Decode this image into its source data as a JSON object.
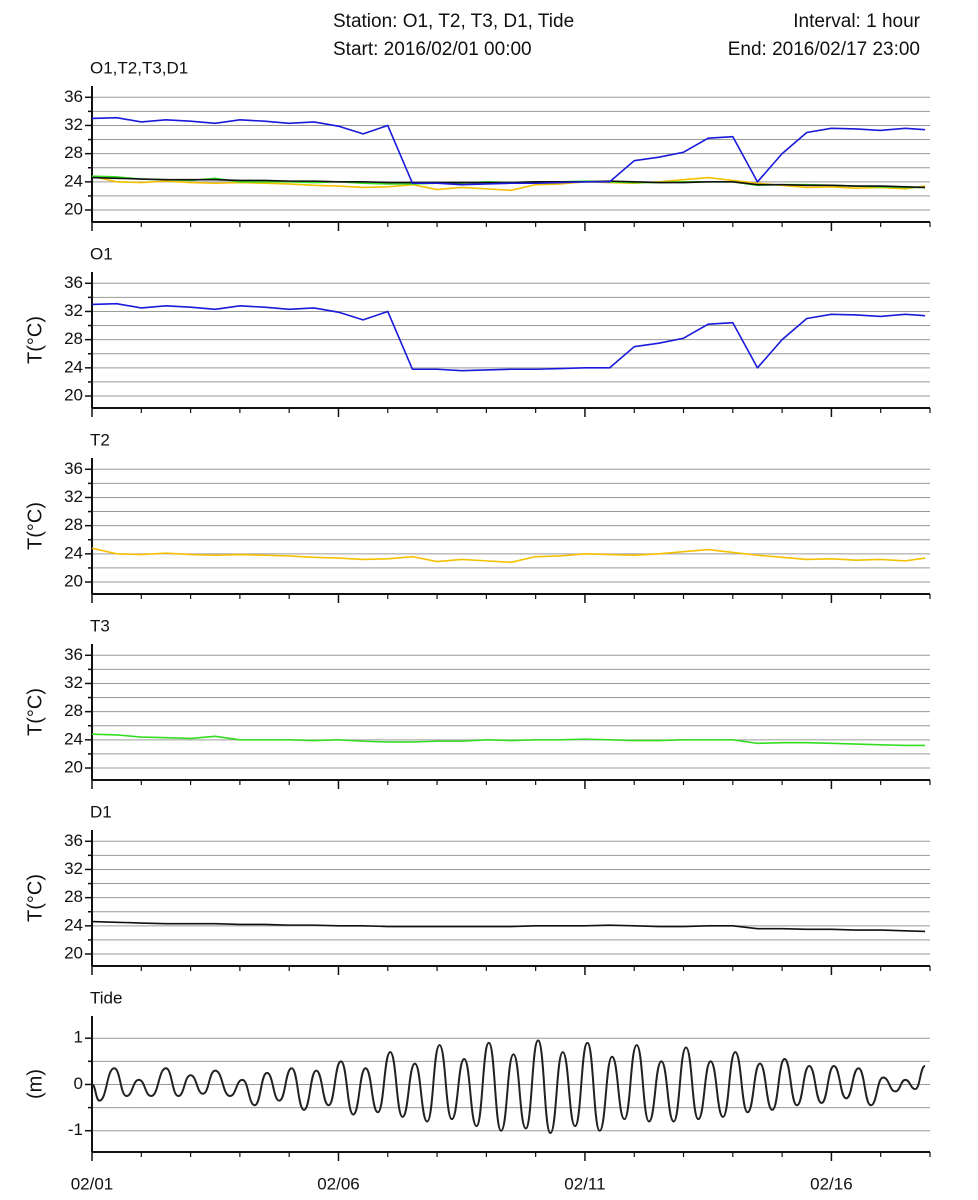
{
  "header": {
    "station": "Station: O1, T2, T3, D1, Tide",
    "interval": "Interval: 1 hour",
    "start": "Start: 2016/02/01 00:00",
    "end": "End: 2016/02/17 23:00"
  },
  "chart_data": [
    {
      "type": "line",
      "title": "O1,T2,T3,D1",
      "x": [
        1,
        1.5,
        2,
        2.5,
        3,
        3.5,
        4,
        4.5,
        5,
        5.5,
        6,
        6.5,
        7,
        7.5,
        8,
        8.5,
        9,
        9.5,
        10,
        10.5,
        11,
        11.5,
        12,
        12.5,
        13,
        13.5,
        14,
        14.5,
        15,
        15.5,
        16,
        16.5,
        17,
        17.5,
        17.9
      ],
      "series": [
        {
          "name": "T2",
          "color": "#f5c000",
          "values": [
            24.8,
            24.0,
            23.9,
            24.1,
            23.9,
            23.8,
            23.9,
            23.8,
            23.7,
            23.5,
            23.4,
            23.2,
            23.3,
            23.6,
            22.9,
            23.2,
            23.0,
            22.8,
            23.6,
            23.7,
            24.0,
            23.9,
            23.8,
            24.0,
            24.3,
            24.6,
            24.2,
            23.8,
            23.5,
            23.2,
            23.3,
            23.1,
            23.2,
            23.0,
            23.4
          ]
        },
        {
          "name": "T3",
          "color": "#33dd22",
          "values": [
            24.8,
            24.7,
            24.4,
            24.3,
            24.2,
            24.5,
            24.0,
            24.0,
            24.0,
            23.9,
            24.0,
            23.8,
            23.7,
            23.7,
            23.8,
            23.8,
            24.0,
            23.9,
            24.0,
            24.0,
            24.1,
            24.0,
            23.9,
            23.9,
            24.0,
            24.0,
            24.0,
            23.5,
            23.6,
            23.6,
            23.5,
            23.4,
            23.3,
            23.2,
            23.2
          ]
        },
        {
          "name": "D1",
          "color": "#111111",
          "values": [
            24.6,
            24.5,
            24.4,
            24.3,
            24.3,
            24.3,
            24.2,
            24.2,
            24.1,
            24.1,
            24.0,
            24.0,
            23.9,
            23.9,
            23.9,
            23.9,
            23.9,
            23.9,
            24.0,
            24.0,
            24.0,
            24.1,
            24.0,
            23.9,
            23.9,
            24.0,
            24.0,
            23.6,
            23.6,
            23.5,
            23.5,
            23.4,
            23.4,
            23.3,
            23.2
          ]
        },
        {
          "name": "O1",
          "color": "#1a1adb",
          "values": [
            33.0,
            33.1,
            32.5,
            32.8,
            32.6,
            32.3,
            32.8,
            32.6,
            32.3,
            32.5,
            31.9,
            30.8,
            32.0,
            23.8,
            23.8,
            23.6,
            23.7,
            23.8,
            23.8,
            23.9,
            24.0,
            24.0,
            27.0,
            27.5,
            28.2,
            30.2,
            30.4,
            24.0,
            28.0,
            31.0,
            31.6,
            31.5,
            31.3,
            31.6,
            31.4
          ]
        }
      ],
      "ylim": [
        18.3,
        37.6
      ],
      "yticks": [
        20,
        24,
        28,
        32,
        36
      ],
      "yminorticks": [
        22,
        26,
        30,
        34
      ],
      "grid": true
    },
    {
      "type": "line",
      "title": "O1",
      "ylabel": "T(°C)",
      "x": [
        1,
        1.5,
        2,
        2.5,
        3,
        3.5,
        4,
        4.5,
        5,
        5.5,
        6,
        6.5,
        7,
        7.5,
        8,
        8.5,
        9,
        9.5,
        10,
        10.5,
        11,
        11.5,
        12,
        12.5,
        13,
        13.5,
        14,
        14.5,
        15,
        15.5,
        16,
        16.5,
        17,
        17.5,
        17.9
      ],
      "series": [
        {
          "name": "O1",
          "color": "#1a1adb",
          "values": [
            33.0,
            33.1,
            32.5,
            32.8,
            32.6,
            32.3,
            32.8,
            32.6,
            32.3,
            32.5,
            31.9,
            30.8,
            32.0,
            23.8,
            23.8,
            23.6,
            23.7,
            23.8,
            23.8,
            23.9,
            24.0,
            24.0,
            27.0,
            27.5,
            28.2,
            30.2,
            30.4,
            24.0,
            28.0,
            31.0,
            31.6,
            31.5,
            31.3,
            31.6,
            31.4
          ]
        }
      ],
      "ylim": [
        18.3,
        37.6
      ],
      "yticks": [
        20,
        24,
        28,
        32,
        36
      ],
      "yminorticks": [
        22,
        26,
        30,
        34
      ],
      "grid": true
    },
    {
      "type": "line",
      "title": "T2",
      "ylabel": "T(°C)",
      "x": [
        1,
        1.5,
        2,
        2.5,
        3,
        3.5,
        4,
        4.5,
        5,
        5.5,
        6,
        6.5,
        7,
        7.5,
        8,
        8.5,
        9,
        9.5,
        10,
        10.5,
        11,
        11.5,
        12,
        12.5,
        13,
        13.5,
        14,
        14.5,
        15,
        15.5,
        16,
        16.5,
        17,
        17.5,
        17.9
      ],
      "series": [
        {
          "name": "T2",
          "color": "#f5c000",
          "values": [
            24.8,
            24.0,
            23.9,
            24.1,
            23.9,
            23.8,
            23.9,
            23.8,
            23.7,
            23.5,
            23.4,
            23.2,
            23.3,
            23.6,
            22.9,
            23.2,
            23.0,
            22.8,
            23.6,
            23.7,
            24.0,
            23.9,
            23.8,
            24.0,
            24.3,
            24.6,
            24.2,
            23.8,
            23.5,
            23.2,
            23.3,
            23.1,
            23.2,
            23.0,
            23.4
          ]
        }
      ],
      "ylim": [
        18.3,
        37.6
      ],
      "yticks": [
        20,
        24,
        28,
        32,
        36
      ],
      "yminorticks": [
        22,
        26,
        30,
        34
      ],
      "grid": true
    },
    {
      "type": "line",
      "title": "T3",
      "ylabel": "T(°C)",
      "x": [
        1,
        1.5,
        2,
        2.5,
        3,
        3.5,
        4,
        4.5,
        5,
        5.5,
        6,
        6.5,
        7,
        7.5,
        8,
        8.5,
        9,
        9.5,
        10,
        10.5,
        11,
        11.5,
        12,
        12.5,
        13,
        13.5,
        14,
        14.5,
        15,
        15.5,
        16,
        16.5,
        17,
        17.5,
        17.9
      ],
      "series": [
        {
          "name": "T3",
          "color": "#33dd22",
          "values": [
            24.8,
            24.7,
            24.4,
            24.3,
            24.2,
            24.5,
            24.0,
            24.0,
            24.0,
            23.9,
            24.0,
            23.8,
            23.7,
            23.7,
            23.8,
            23.8,
            24.0,
            23.9,
            24.0,
            24.0,
            24.1,
            24.0,
            23.9,
            23.9,
            24.0,
            24.0,
            24.0,
            23.5,
            23.6,
            23.6,
            23.5,
            23.4,
            23.3,
            23.2,
            23.2
          ]
        }
      ],
      "ylim": [
        18.3,
        37.6
      ],
      "yticks": [
        20,
        24,
        28,
        32,
        36
      ],
      "yminorticks": [
        22,
        26,
        30,
        34
      ],
      "grid": true
    },
    {
      "type": "line",
      "title": "D1",
      "ylabel": "T(°C)",
      "x": [
        1,
        1.5,
        2,
        2.5,
        3,
        3.5,
        4,
        4.5,
        5,
        5.5,
        6,
        6.5,
        7,
        7.5,
        8,
        8.5,
        9,
        9.5,
        10,
        10.5,
        11,
        11.5,
        12,
        12.5,
        13,
        13.5,
        14,
        14.5,
        15,
        15.5,
        16,
        16.5,
        17,
        17.5,
        17.9
      ],
      "series": [
        {
          "name": "D1",
          "color": "#111111",
          "values": [
            24.6,
            24.5,
            24.4,
            24.3,
            24.3,
            24.3,
            24.2,
            24.2,
            24.1,
            24.1,
            24.0,
            24.0,
            23.9,
            23.9,
            23.9,
            23.9,
            23.9,
            23.9,
            24.0,
            24.0,
            24.0,
            24.1,
            24.0,
            23.9,
            23.9,
            24.0,
            24.0,
            23.6,
            23.6,
            23.5,
            23.5,
            23.4,
            23.4,
            23.3,
            23.2
          ]
        }
      ],
      "ylim": [
        18.3,
        37.6
      ],
      "yticks": [
        20,
        24,
        28,
        32,
        36
      ],
      "yminorticks": [
        22,
        26,
        30,
        34
      ],
      "grid": true
    },
    {
      "type": "smooth-line",
      "title": "Tide",
      "ylabel": "(m)",
      "x": [
        1.0,
        1.15,
        1.45,
        1.7,
        1.95,
        2.2,
        2.5,
        2.75,
        3.0,
        3.25,
        3.5,
        3.8,
        4.05,
        4.3,
        4.55,
        4.8,
        5.05,
        5.3,
        5.55,
        5.8,
        6.05,
        6.3,
        6.55,
        6.8,
        7.05,
        7.3,
        7.55,
        7.8,
        8.05,
        8.3,
        8.55,
        8.8,
        9.05,
        9.3,
        9.55,
        9.8,
        10.05,
        10.3,
        10.55,
        10.8,
        11.05,
        11.3,
        11.55,
        11.8,
        12.05,
        12.3,
        12.55,
        12.8,
        13.05,
        13.3,
        13.55,
        13.8,
        14.05,
        14.3,
        14.55,
        14.8,
        15.05,
        15.3,
        15.55,
        15.8,
        16.05,
        16.3,
        16.55,
        16.8,
        17.05,
        17.3,
        17.5,
        17.7,
        17.9
      ],
      "series": [
        {
          "name": "Tide",
          "color": "#222222",
          "values": [
            0.0,
            -0.35,
            0.35,
            -0.25,
            0.1,
            -0.25,
            0.35,
            -0.25,
            0.2,
            -0.2,
            0.3,
            -0.25,
            0.1,
            -0.45,
            0.25,
            -0.35,
            0.35,
            -0.55,
            0.3,
            -0.45,
            0.5,
            -0.65,
            0.35,
            -0.6,
            0.7,
            -0.7,
            0.45,
            -0.8,
            0.85,
            -0.75,
            0.55,
            -0.9,
            0.9,
            -1.0,
            0.65,
            -0.95,
            0.95,
            -1.05,
            0.7,
            -0.9,
            0.9,
            -1.0,
            0.6,
            -0.75,
            0.85,
            -0.8,
            0.5,
            -0.8,
            0.8,
            -0.75,
            0.5,
            -0.7,
            0.7,
            -0.6,
            0.45,
            -0.55,
            0.55,
            -0.45,
            0.4,
            -0.4,
            0.4,
            -0.3,
            0.35,
            -0.45,
            0.15,
            -0.15,
            0.1,
            -0.1,
            0.4
          ]
        }
      ],
      "ylim": [
        -1.46,
        1.48
      ],
      "yticks": [
        -1,
        0,
        1
      ],
      "yminorticks": [
        -0.5,
        0.5
      ],
      "grid": true,
      "xlim": [
        1,
        18
      ],
      "xticks": [
        {
          "value": 1,
          "label": "02/01"
        },
        {
          "value": 6,
          "label": "02/06"
        },
        {
          "value": 11,
          "label": "02/11"
        },
        {
          "value": 16,
          "label": "02/16"
        }
      ],
      "xminorticks": [
        2,
        3,
        4,
        5,
        7,
        8,
        9,
        10,
        12,
        13,
        14,
        15,
        17,
        18
      ]
    }
  ]
}
